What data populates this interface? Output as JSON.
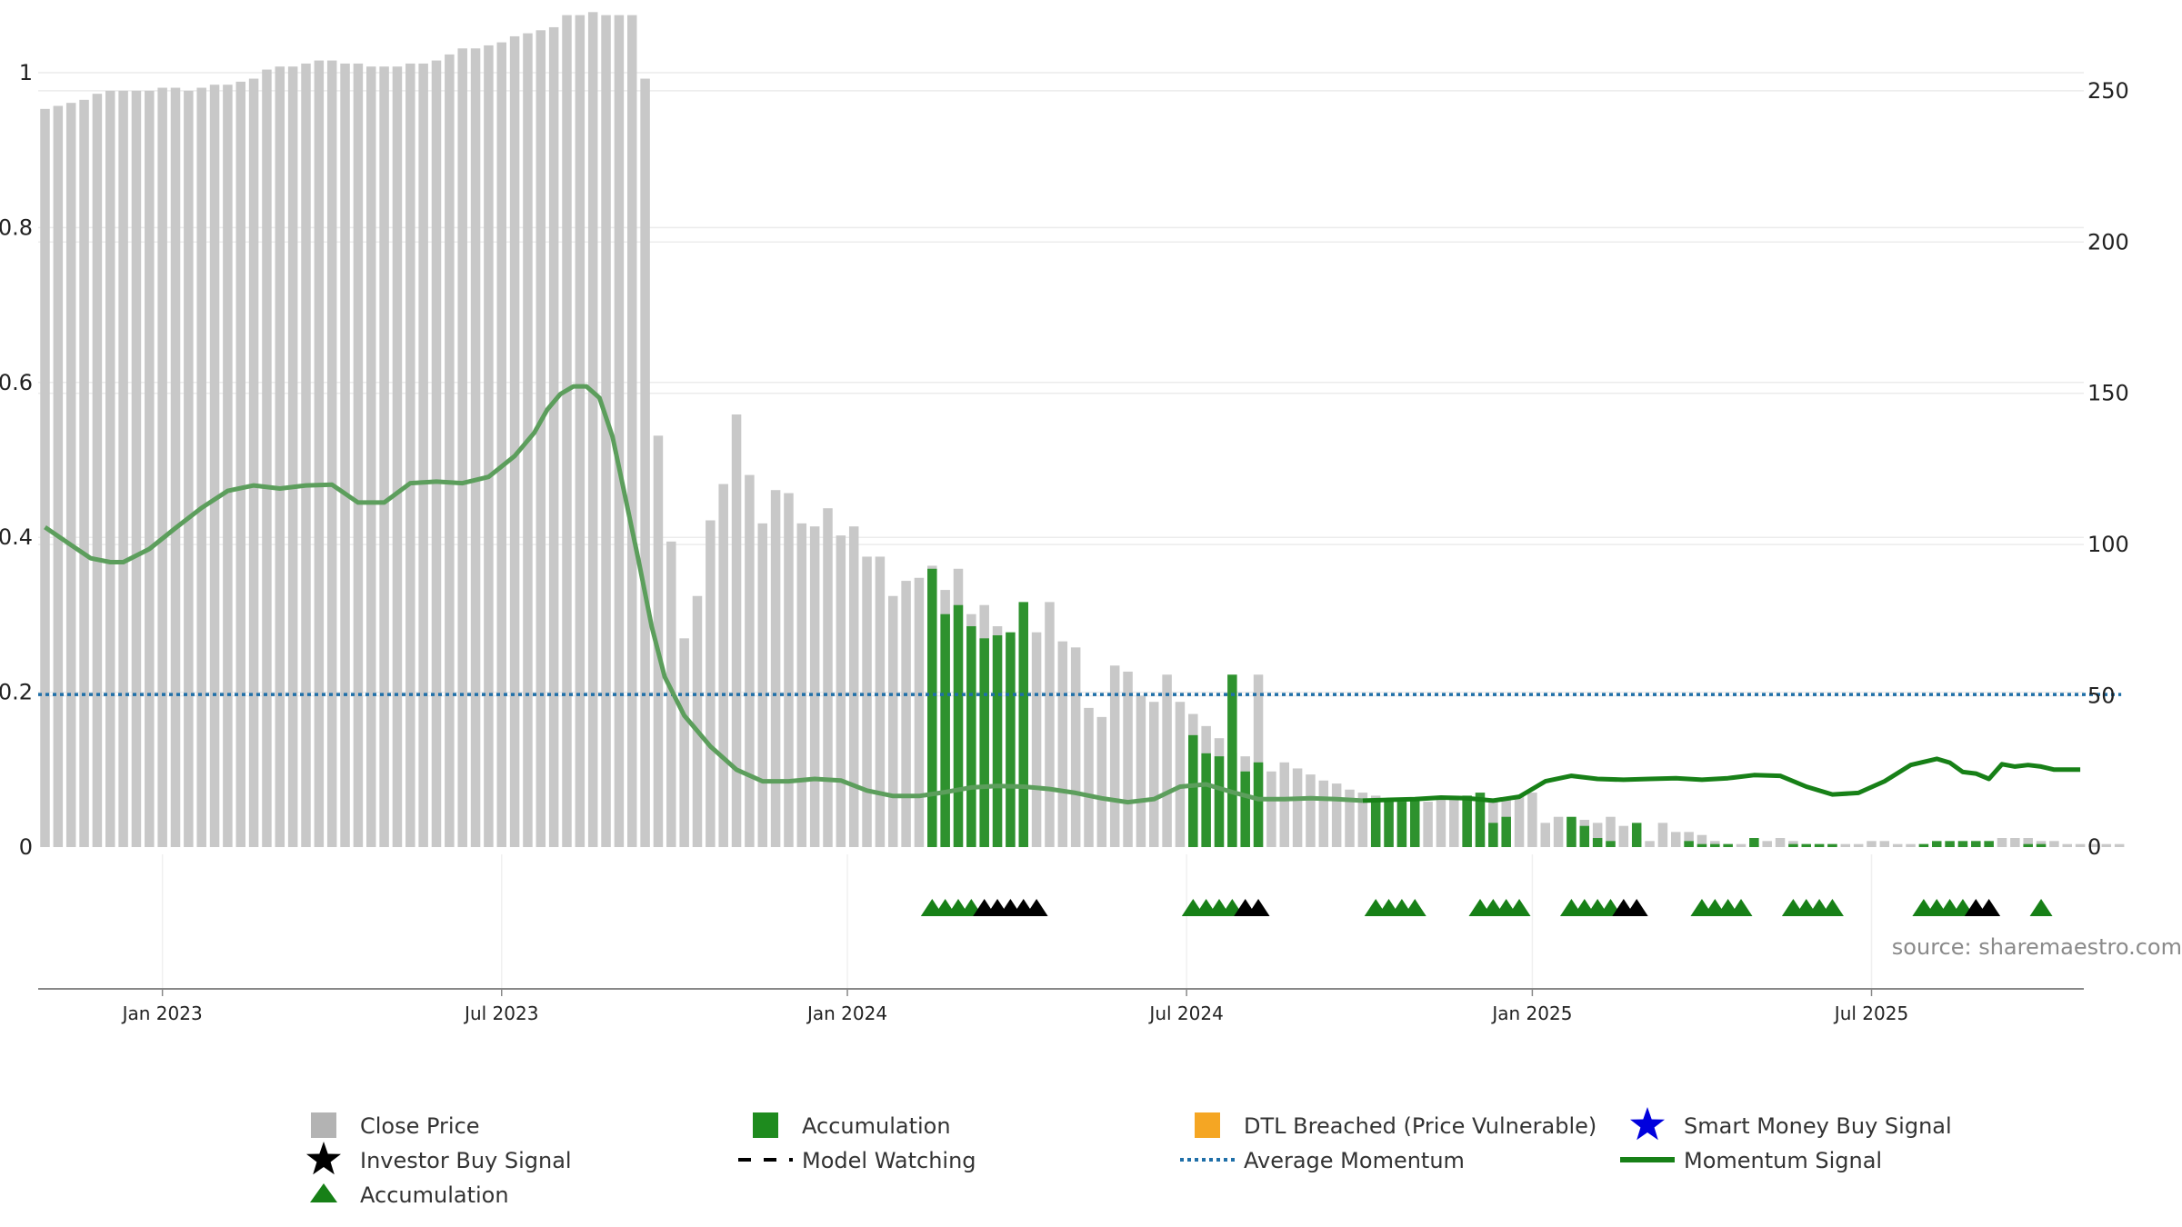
{
  "chart_data": {
    "type": "bar",
    "source_label": "source: sharemaestro.com",
    "y_left": {
      "ticks": [
        "0",
        "0.2",
        "0.4",
        "0.6",
        "0.8",
        "1"
      ],
      "min": 0,
      "max": 1
    },
    "y_right": {
      "ticks": [
        "0",
        "50",
        "100",
        "150",
        "200",
        "250"
      ],
      "min": 0,
      "max": 280
    },
    "x_ticks": [
      "Jan 2023",
      "Jul 2023",
      "Jan 2024",
      "Jul 2024",
      "Jan 2025",
      "Jul 2025"
    ],
    "x_tick_positions": [
      9.0,
      35.0,
      61.5,
      87.5,
      114.0,
      140.0
    ],
    "average_momentum": 0.197,
    "close_price": [
      244,
      245,
      246,
      247,
      249,
      250,
      250,
      250,
      250,
      251,
      251,
      250,
      251,
      252,
      252,
      253,
      254,
      257,
      258,
      258,
      259,
      260,
      260,
      259,
      259,
      258,
      258,
      258,
      259,
      259,
      260,
      262,
      264,
      264,
      265,
      266,
      268,
      269,
      270,
      271,
      275,
      275,
      276,
      275,
      275,
      275,
      254,
      136,
      101,
      69,
      83,
      108,
      120,
      143,
      123,
      107,
      118,
      117,
      107,
      106,
      112,
      103,
      106,
      96,
      96,
      83,
      88,
      89,
      93,
      85,
      92,
      77,
      80,
      73,
      69,
      70,
      71,
      81,
      68,
      66,
      46,
      43,
      60,
      58,
      50,
      48,
      57,
      48,
      44,
      40,
      36,
      31,
      30,
      57,
      25,
      28,
      26,
      24,
      22,
      21,
      19,
      18,
      17,
      15,
      15,
      15,
      15,
      16,
      17,
      17,
      16,
      16,
      16,
      17,
      18,
      8,
      10,
      9,
      9,
      8,
      10,
      7,
      3,
      2,
      8,
      5,
      5,
      4,
      2,
      1,
      1,
      1,
      2,
      3,
      2,
      1,
      1,
      1,
      1,
      1,
      2,
      2,
      1,
      1,
      1,
      1,
      1,
      1,
      2,
      2,
      3,
      3,
      3,
      2,
      2,
      1,
      1,
      1,
      1,
      1
    ],
    "accumulation_bars": [
      [
        68,
        92
      ],
      [
        69,
        77
      ],
      [
        70,
        80
      ],
      [
        71,
        73
      ],
      [
        72,
        69
      ],
      [
        73,
        70
      ],
      [
        74,
        71
      ],
      [
        75,
        81
      ],
      [
        88,
        37
      ],
      [
        89,
        31
      ],
      [
        90,
        30
      ],
      [
        91,
        57
      ],
      [
        92,
        25
      ],
      [
        93,
        28
      ],
      [
        102,
        15
      ],
      [
        103,
        15
      ],
      [
        104,
        15
      ],
      [
        105,
        16
      ],
      [
        109,
        17
      ],
      [
        110,
        18
      ],
      [
        111,
        8
      ],
      [
        112,
        10
      ],
      [
        117,
        10
      ],
      [
        118,
        7
      ],
      [
        119,
        3
      ],
      [
        120,
        2
      ],
      [
        122,
        8
      ],
      [
        126,
        2
      ],
      [
        127,
        1
      ],
      [
        128,
        1
      ],
      [
        129,
        1
      ],
      [
        131,
        3
      ],
      [
        134,
        1
      ],
      [
        135,
        1
      ],
      [
        136,
        1
      ],
      [
        137,
        1
      ],
      [
        144,
        1
      ],
      [
        145,
        2
      ],
      [
        146,
        2
      ],
      [
        147,
        2
      ],
      [
        148,
        2
      ],
      [
        149,
        2
      ],
      [
        152,
        1
      ],
      [
        153,
        1
      ]
    ],
    "momentum_x": [
      0,
      2,
      3.5,
      5,
      6,
      8,
      10,
      12,
      14,
      16,
      18,
      20,
      22,
      24,
      26,
      28,
      30,
      32,
      34,
      36,
      37.5,
      38.5,
      39.5,
      40.5,
      41.5,
      42.5,
      43.5,
      44.5,
      45.5,
      46.5,
      47.5,
      49,
      51,
      53,
      55,
      57,
      59,
      61,
      63,
      65,
      67,
      69,
      71,
      73,
      75,
      77,
      79,
      81,
      83,
      85,
      87,
      89,
      91,
      93,
      95,
      97,
      99,
      101,
      103,
      105,
      107,
      109,
      111,
      113,
      115,
      117,
      119,
      121,
      123,
      125,
      127,
      129,
      131,
      133,
      135,
      137,
      139,
      141,
      143,
      145,
      146,
      147,
      148,
      149,
      150,
      151,
      152,
      153,
      154,
      155,
      156
    ],
    "momentum_y": [
      0.413,
      0.39,
      0.373,
      0.368,
      0.368,
      0.385,
      0.412,
      0.438,
      0.46,
      0.467,
      0.463,
      0.467,
      0.468,
      0.445,
      0.445,
      0.47,
      0.472,
      0.47,
      0.478,
      0.505,
      0.535,
      0.565,
      0.585,
      0.595,
      0.595,
      0.58,
      0.53,
      0.45,
      0.37,
      0.285,
      0.22,
      0.17,
      0.13,
      0.1,
      0.085,
      0.085,
      0.088,
      0.086,
      0.073,
      0.066,
      0.066,
      0.071,
      0.077,
      0.079,
      0.078,
      0.075,
      0.07,
      0.063,
      0.058,
      0.062,
      0.078,
      0.081,
      0.071,
      0.062,
      0.062,
      0.063,
      0.062,
      0.06,
      0.061,
      0.062,
      0.064,
      0.063,
      0.06,
      0.065,
      0.085,
      0.092,
      0.088,
      0.087,
      0.088,
      0.089,
      0.087,
      0.089,
      0.093,
      0.092,
      0.078,
      0.068,
      0.07,
      0.085,
      0.106,
      0.114,
      0.109,
      0.097,
      0.095,
      0.088,
      0.107,
      0.104,
      0.106,
      0.104,
      0.1,
      0.1,
      0.1
    ],
    "momentum_faded_until": 100,
    "accumulation_markers": [
      68,
      69,
      70,
      71,
      88,
      89,
      90,
      91,
      102,
      103,
      104,
      105,
      110,
      111,
      112,
      113,
      117,
      118,
      119,
      120,
      127,
      128,
      129,
      130,
      134,
      135,
      136,
      137,
      144,
      145,
      146,
      147,
      153
    ],
    "investor_buy_markers": [
      72,
      73,
      74,
      75,
      76,
      92,
      93,
      121,
      122,
      148,
      149
    ],
    "legend": [
      {
        "label": "Close Price",
        "symbol": "square",
        "color": "#b3b3b3"
      },
      {
        "label": "Accumulation",
        "symbol": "square",
        "color": "#1e8b1e"
      },
      {
        "label": "DTL Breached (Price Vulnerable)",
        "symbol": "square",
        "color": "#f5a623"
      },
      {
        "label": "Smart Money Buy Signal",
        "symbol": "star",
        "color": "#0000dd"
      },
      {
        "label": "Investor Buy Signal",
        "symbol": "star",
        "color": "#000000"
      },
      {
        "label": "Model Watching",
        "symbol": "dash",
        "color": "#000000"
      },
      {
        "label": "Average Momentum",
        "symbol": "dot",
        "color": "#1f6fa8"
      },
      {
        "label": "Momentum Signal",
        "symbol": "line",
        "color": "#178017"
      },
      {
        "label": "Accumulation",
        "symbol": "triangle",
        "color": "#178017"
      }
    ],
    "colors": {
      "close_bar": "#c8c8c8",
      "accumulation_bar": "#2e922e",
      "momentum_line": "#178017",
      "momentum_faded": "#5c9e5c",
      "average_line": "#1f6fa8",
      "accumulation_marker": "#178017",
      "investor_marker": "#000000"
    }
  }
}
